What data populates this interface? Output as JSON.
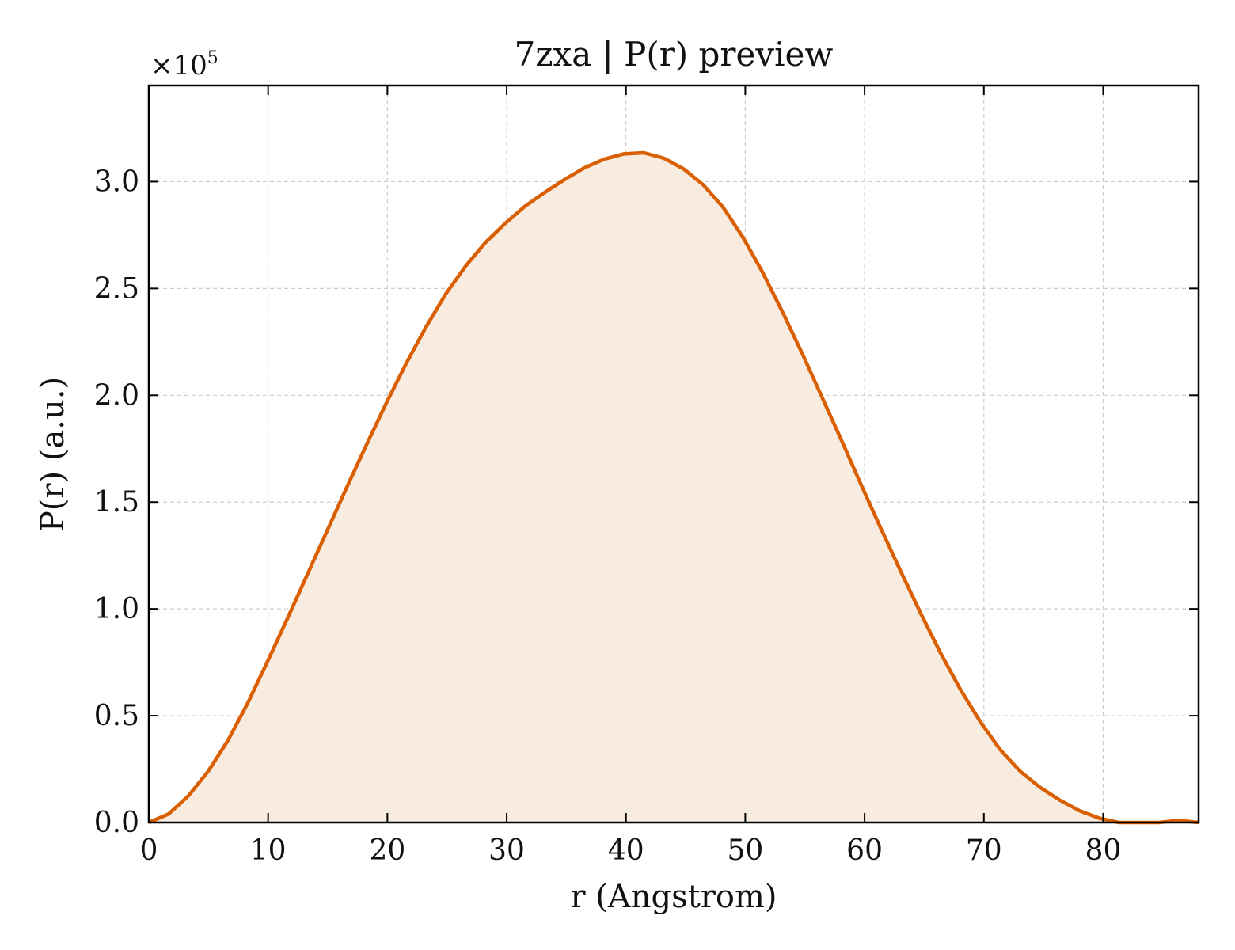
{
  "chart_data": {
    "type": "area",
    "title": "7zxa | P(r) preview",
    "xlabel": "r (Angstrom)",
    "ylabel": "P(r) (a.u.)",
    "y_offset_base": "×10",
    "y_offset_exponent": "5",
    "xlim": [
      0,
      88
    ],
    "ylim": [
      0,
      3.45
    ],
    "x_ticks": [
      0,
      10,
      20,
      30,
      40,
      50,
      60,
      70,
      80
    ],
    "x_tick_labels": [
      "0",
      "10",
      "20",
      "30",
      "40",
      "50",
      "60",
      "70",
      "80"
    ],
    "y_ticks": [
      0,
      0.5,
      1.0,
      1.5,
      2.0,
      2.5,
      3.0
    ],
    "y_tick_labels": [
      "0.0",
      "0.5",
      "1.0",
      "1.5",
      "2.0",
      "2.5",
      "3.0"
    ],
    "grid": true,
    "line_color": "#d95f02",
    "fill_color": "#f8ebe0",
    "series": [
      {
        "x": [
          0,
          1.66,
          3.32,
          4.98,
          6.64,
          8.3,
          9.96,
          11.62,
          13.28,
          14.94,
          16.6,
          18.26,
          19.92,
          21.58,
          23.24,
          24.9,
          26.56,
          28.22,
          29.88,
          31.54,
          33.2,
          34.86,
          36.52,
          38.18,
          39.84,
          41.5,
          43.16,
          44.82,
          46.48,
          48.14,
          49.8,
          51.46,
          53.12,
          54.78,
          56.44,
          58.1,
          59.76,
          61.42,
          63.08,
          64.74,
          66.4,
          68.06,
          69.72,
          71.38,
          73.04,
          74.7,
          76.36,
          78.02,
          79.68,
          81.34,
          83.0,
          84.66,
          86.32,
          88.0
        ],
        "y": [
          0.0,
          0.04,
          0.125,
          0.24,
          0.385,
          0.56,
          0.755,
          0.955,
          1.16,
          1.365,
          1.57,
          1.77,
          1.965,
          2.15,
          2.32,
          2.475,
          2.605,
          2.715,
          2.805,
          2.885,
          2.95,
          3.01,
          3.065,
          3.105,
          3.13,
          3.135,
          3.11,
          3.06,
          2.985,
          2.88,
          2.74,
          2.575,
          2.39,
          2.195,
          1.99,
          1.785,
          1.575,
          1.37,
          1.17,
          0.975,
          0.79,
          0.62,
          0.47,
          0.34,
          0.24,
          0.165,
          0.105,
          0.055,
          0.02,
          0.0,
          0.0,
          0.0,
          0.01,
          0.0
        ]
      }
    ]
  }
}
